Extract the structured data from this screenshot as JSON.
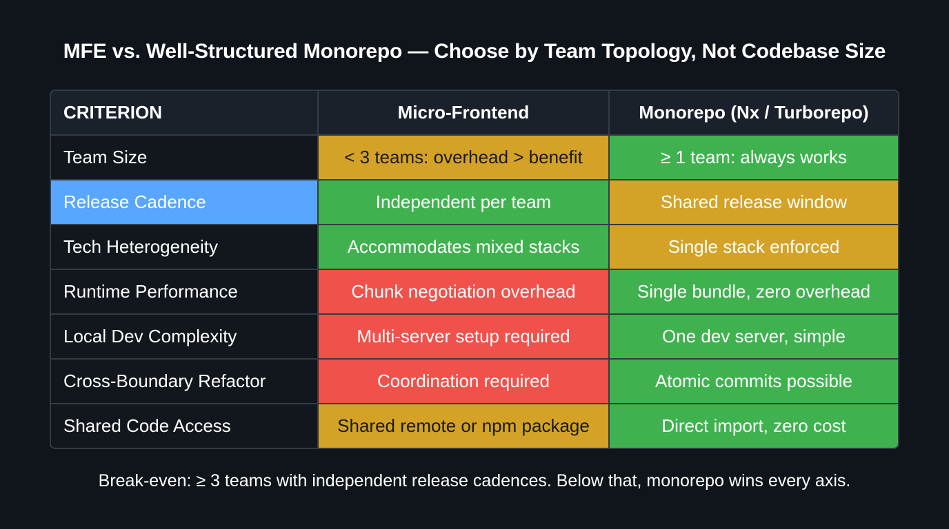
{
  "title": "MFE vs. Well-Structured Monorepo — Choose by Team Topology, Not Codebase Size",
  "table": {
    "headers": [
      "CRITERION",
      "Micro-Frontend",
      "Monorepo (Nx / Turborepo)"
    ],
    "rows": [
      {
        "criterion": "Team Size",
        "mfe": "< 3 teams: overhead > benefit",
        "mono": "≥ 1 team: always works"
      },
      {
        "criterion": "Release Cadence",
        "mfe": "Independent per team",
        "mono": "Shared release window"
      },
      {
        "criterion": "Tech Heterogeneity",
        "mfe": "Accommodates mixed stacks",
        "mono": "Single stack enforced"
      },
      {
        "criterion": "Runtime Performance",
        "mfe": "Chunk negotiation overhead",
        "mono": "Single bundle, zero overhead"
      },
      {
        "criterion": "Local Dev Complexity",
        "mfe": "Multi-server setup required",
        "mono": "One dev server, simple"
      },
      {
        "criterion": "Cross-Boundary Refactor",
        "mfe": "Coordination required",
        "mono": "Atomic commits possible"
      },
      {
        "criterion": "Shared Code Access",
        "mfe": "Shared remote or npm package",
        "mono": "Direct import, zero cost"
      }
    ]
  },
  "colors": {
    "green": "#3fb24f",
    "amber": "#d3a227",
    "red": "#f0514a",
    "highlight": "#58a6ff"
  },
  "footer": "Break-even: ≥ 3 teams with independent release cadences. Below that, monorepo wins every axis."
}
